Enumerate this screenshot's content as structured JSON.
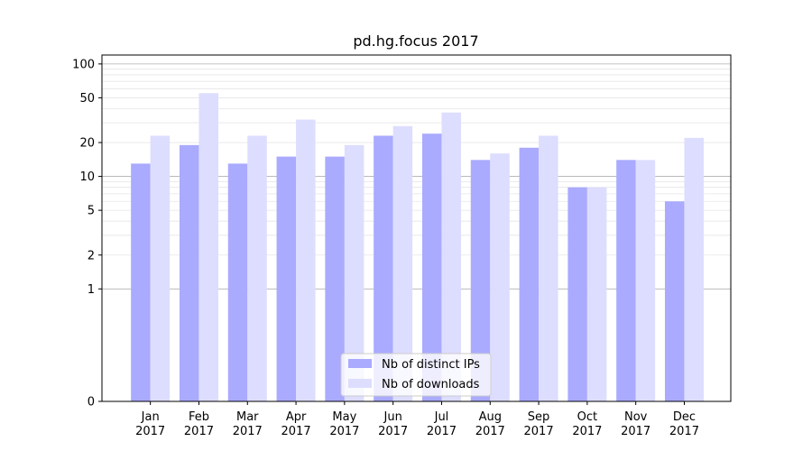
{
  "chart_data": {
    "type": "bar",
    "title": "pd.hg.focus 2017",
    "xlabel": "",
    "ylabel": "",
    "y_scale": "symlog",
    "ylim": [
      0,
      120
    ],
    "y_ticks": [
      0,
      1,
      2,
      5,
      10,
      20,
      50,
      100
    ],
    "y_tick_labels": [
      "0",
      "1",
      "2",
      "5",
      "10",
      "20",
      "50",
      "100"
    ],
    "categories": [
      [
        "Jan",
        "2017"
      ],
      [
        "Feb",
        "2017"
      ],
      [
        "Mar",
        "2017"
      ],
      [
        "Apr",
        "2017"
      ],
      [
        "May",
        "2017"
      ],
      [
        "Jun",
        "2017"
      ],
      [
        "Jul",
        "2017"
      ],
      [
        "Aug",
        "2017"
      ],
      [
        "Sep",
        "2017"
      ],
      [
        "Oct",
        "2017"
      ],
      [
        "Nov",
        "2017"
      ],
      [
        "Dec",
        "2017"
      ]
    ],
    "series": [
      {
        "name": "Nb of distinct IPs",
        "color": "#aaaaff",
        "values": [
          13,
          19,
          13,
          15,
          15,
          23,
          24,
          14,
          18,
          8,
          14,
          6
        ]
      },
      {
        "name": "Nb of downloads",
        "color": "#ddddff",
        "values": [
          23,
          55,
          23,
          32,
          19,
          28,
          37,
          16,
          23,
          8,
          14,
          22
        ]
      }
    ],
    "grid": true,
    "legend_position": "bottom-center"
  }
}
